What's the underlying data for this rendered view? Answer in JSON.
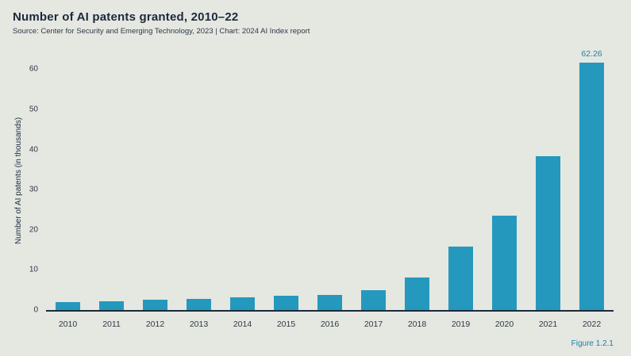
{
  "chart_data": {
    "type": "bar",
    "title": "Number of AI patents granted, 2010–22",
    "subtitle": "Source: Center for Security and Emerging Technology, 2023 | Chart: 2024 AI Index report",
    "ylabel": "Number of AI patents (in thousands)",
    "figure_label": "Figure 1.2.1",
    "categories": [
      "2010",
      "2011",
      "2012",
      "2013",
      "2014",
      "2015",
      "2016",
      "2017",
      "2018",
      "2019",
      "2020",
      "2021",
      "2022"
    ],
    "values": [
      2.0,
      2.2,
      2.6,
      2.7,
      3.1,
      3.5,
      3.8,
      5.0,
      8.2,
      15.9,
      23.5,
      38.3,
      62.26
    ],
    "value_labels": [
      null,
      null,
      null,
      null,
      null,
      null,
      null,
      null,
      null,
      null,
      null,
      null,
      "62.26"
    ],
    "yticks": [
      0,
      10,
      20,
      30,
      40,
      50,
      60
    ],
    "ylim": [
      0,
      65
    ],
    "grid": false,
    "legend": "none",
    "bar_color": "#2499bd",
    "background_color": "#e5e7e1",
    "title_color": "#1b2a3b",
    "accent_color": "#1f7ea6"
  }
}
